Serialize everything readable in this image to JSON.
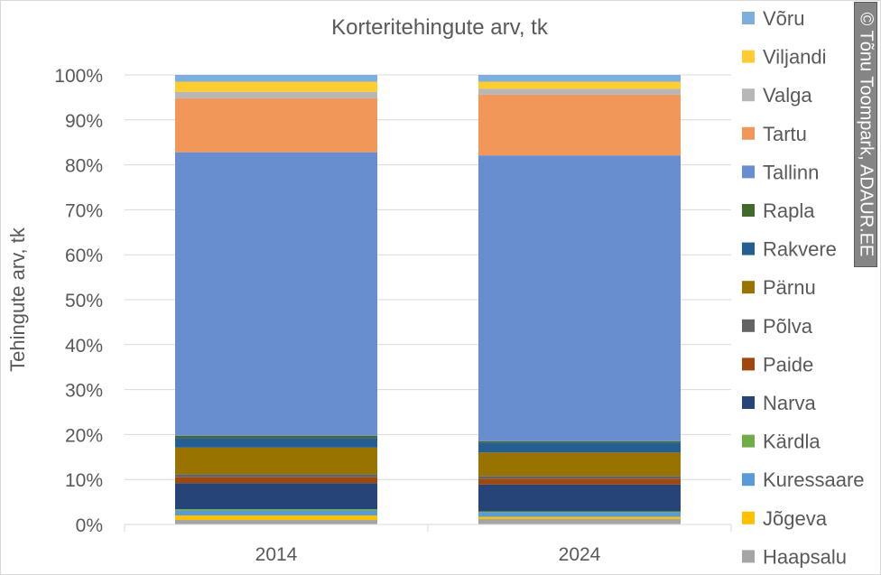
{
  "chart_data": {
    "type": "bar",
    "stacked": true,
    "percent": true,
    "title": "Korteritehingute arv, tk",
    "ylabel": "Tehingute arv, tk",
    "xlabel": "",
    "ylim": [
      0,
      100
    ],
    "yticks": [
      "0%",
      "10%",
      "20%",
      "30%",
      "40%",
      "50%",
      "60%",
      "70%",
      "80%",
      "90%",
      "100%"
    ],
    "grid": true,
    "legend_position": "right",
    "categories": [
      "2014",
      "2024"
    ],
    "series": [
      {
        "name": "Haapsalu",
        "color": "#A5A5A5",
        "values": [
          1.0,
          1.2
        ]
      },
      {
        "name": "Jõgeva",
        "color": "#FFC000",
        "values": [
          1.0,
          0.5
        ]
      },
      {
        "name": "Kuressaare",
        "color": "#5B9BD5",
        "values": [
          1.1,
          1.0
        ]
      },
      {
        "name": "Kärdla",
        "color": "#70AD47",
        "values": [
          0.3,
          0.2
        ]
      },
      {
        "name": "Narva",
        "color": "#264478",
        "values": [
          5.8,
          6.0
        ]
      },
      {
        "name": "Paide",
        "color": "#9E480E",
        "values": [
          1.3,
          1.3
        ]
      },
      {
        "name": "Põlva",
        "color": "#636363",
        "values": [
          0.7,
          0.6
        ]
      },
      {
        "name": "Pärnu",
        "color": "#997300",
        "values": [
          5.9,
          5.2
        ]
      },
      {
        "name": "Rakvere",
        "color": "#255E91",
        "values": [
          2.1,
          2.2
        ]
      },
      {
        "name": "Rapla",
        "color": "#43682B",
        "values": [
          0.5,
          0.3
        ]
      },
      {
        "name": "Tallinn",
        "color": "#698ED0",
        "values": [
          63.1,
          63.6
        ]
      },
      {
        "name": "Tartu",
        "color": "#F1975A",
        "values": [
          12.0,
          13.5
        ]
      },
      {
        "name": "Valga",
        "color": "#B7B7B7",
        "values": [
          1.4,
          1.3
        ]
      },
      {
        "name": "Viljandi",
        "color": "#FFCD33",
        "values": [
          2.3,
          1.6
        ]
      },
      {
        "name": "Võru",
        "color": "#7CAFDD",
        "values": [
          1.5,
          1.5
        ]
      }
    ]
  },
  "watermark": "© Tõnu Toompark, ADAUR.EE"
}
